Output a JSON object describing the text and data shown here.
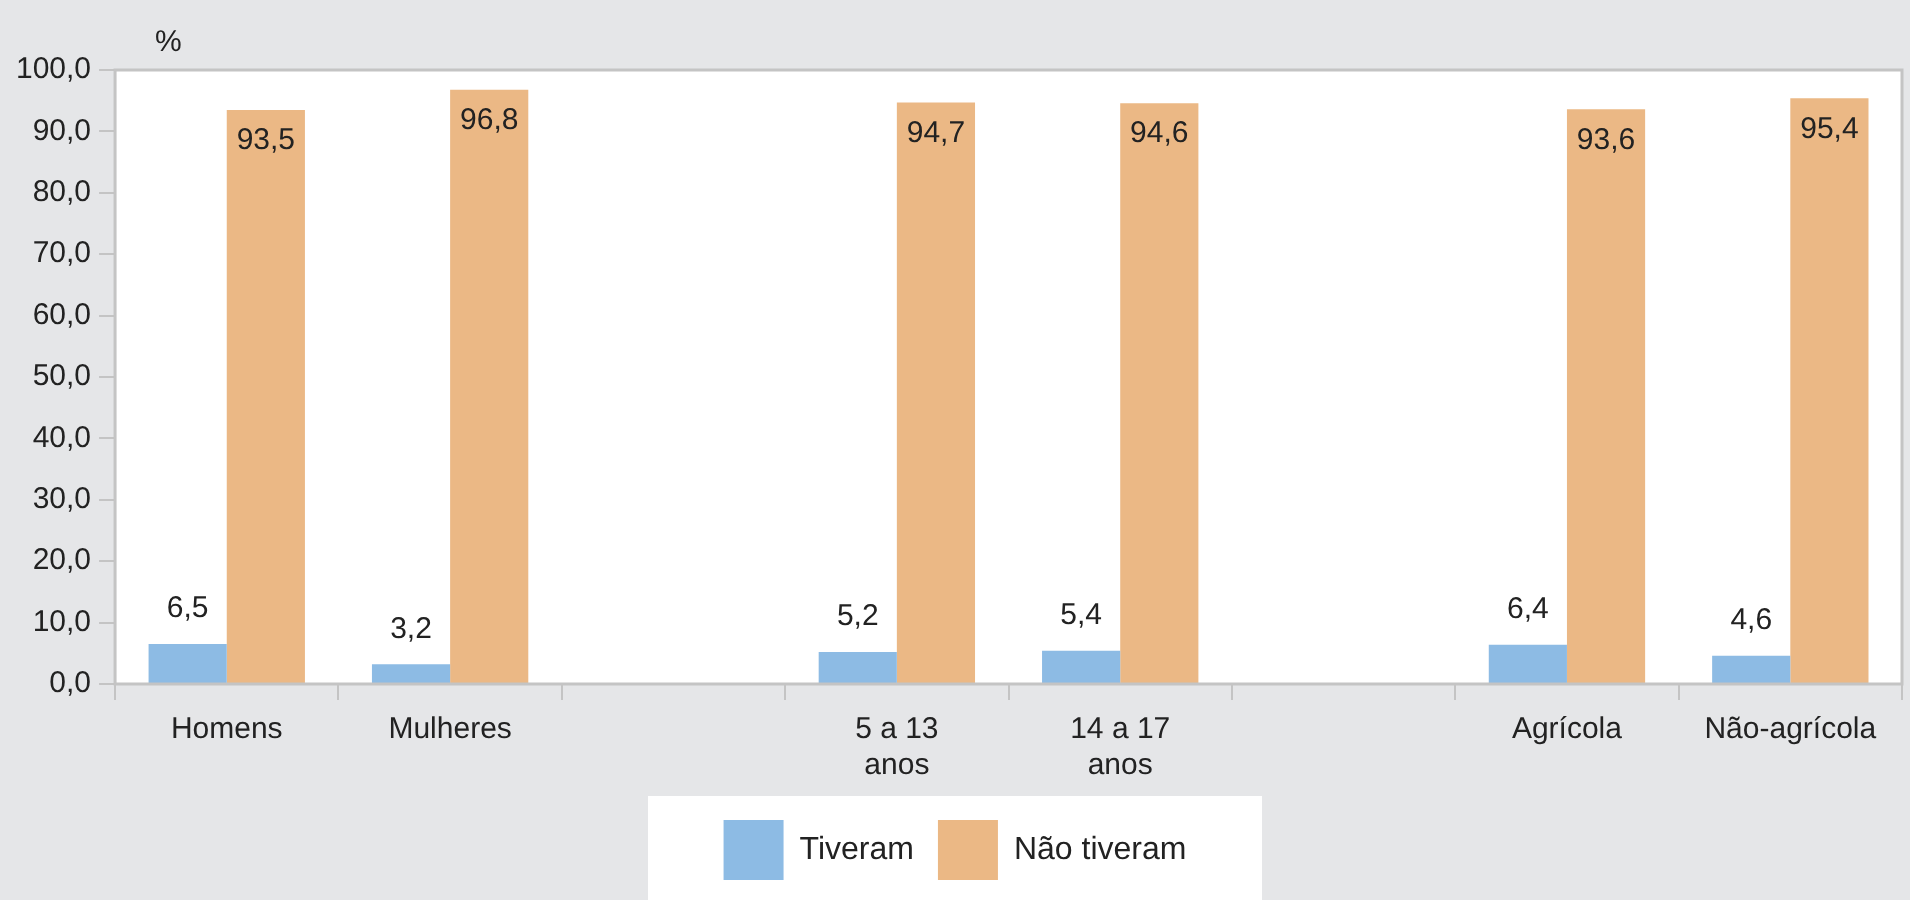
{
  "chart_data": {
    "type": "bar",
    "ylabel": "%",
    "categories": [
      "Homens",
      "Mulheres",
      null,
      "5 a 13 anos",
      "14 a 17 anos",
      null,
      "Agrícola",
      "Não-agrícola"
    ],
    "series": [
      {
        "name": "Tiveram",
        "color": "#8dbbe4",
        "values": [
          6.5,
          3.2,
          null,
          5.2,
          5.4,
          null,
          6.4,
          4.6
        ],
        "value_labels": [
          "6,5",
          "3,2",
          null,
          "5,2",
          "5,4",
          null,
          "6,4",
          "4,6"
        ]
      },
      {
        "name": "Não tiveram",
        "color": "#ebb885",
        "values": [
          93.5,
          96.8,
          null,
          94.7,
          94.6,
          null,
          93.6,
          95.4
        ],
        "value_labels": [
          "93,5",
          "96,8",
          null,
          "94,7",
          "94,6",
          null,
          "93,6",
          "95,4"
        ]
      }
    ],
    "ylim": [
      0,
      100
    ],
    "yticks": [
      {
        "value": 0,
        "label": "0,0"
      },
      {
        "value": 10,
        "label": "10,0"
      },
      {
        "value": 20,
        "label": "20,0"
      },
      {
        "value": 30,
        "label": "30,0"
      },
      {
        "value": 40,
        "label": "40,0"
      },
      {
        "value": 50,
        "label": "50,0"
      },
      {
        "value": 60,
        "label": "60,0"
      },
      {
        "value": 70,
        "label": "70,0"
      },
      {
        "value": 80,
        "label": "80,0"
      },
      {
        "value": 90,
        "label": "90,0"
      },
      {
        "value": 100,
        "label": "100,0"
      }
    ],
    "grid": false,
    "legend": "bottom"
  }
}
